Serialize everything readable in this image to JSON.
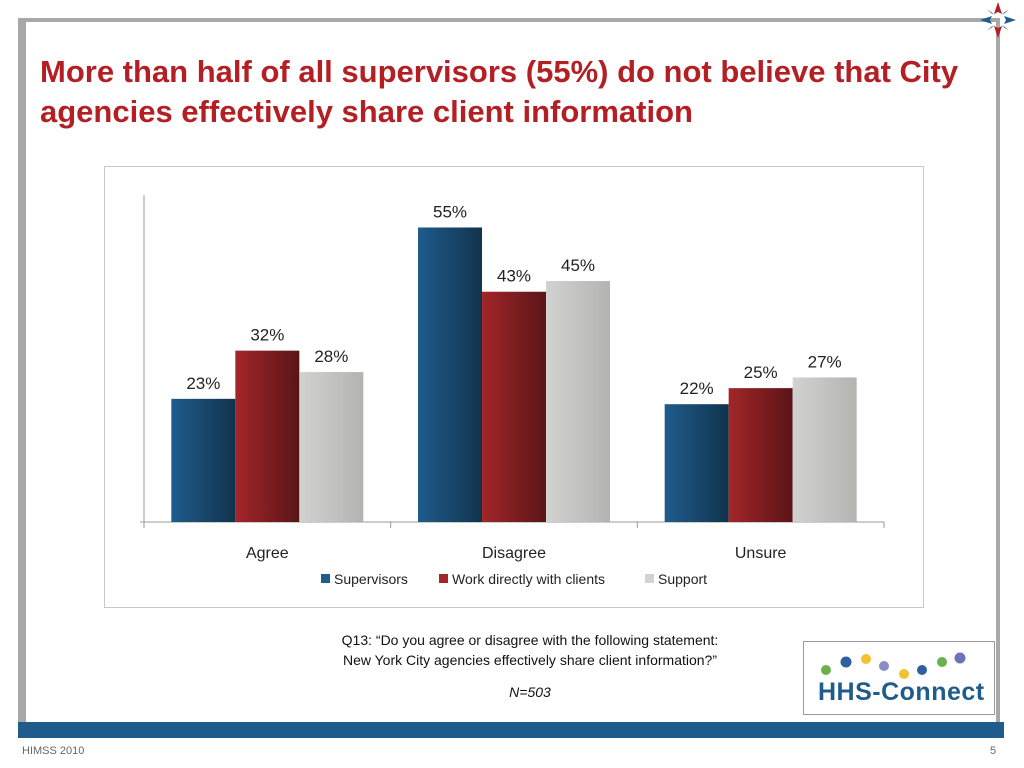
{
  "slide": {
    "title": "More than half of all supervisors (55%) do not believe that City agencies effectively share client information",
    "question_line1": "Q13: “Do you agree or disagree with the following statement:",
    "question_line2": "New York City agencies effectively share client information?”",
    "sample_size": "N=503",
    "footer_left": "HIMSS 2010",
    "page_number": "5",
    "logo_text": "HHS-Connect",
    "corner_logo_icon": "star-logo-icon"
  },
  "colors": {
    "title": "#b41f24",
    "supervisors": "#1f5c8c",
    "work_directly": "#a3262a",
    "support": "#d2d2d0",
    "frame_bar": "#1f5c8c"
  },
  "chart_data": {
    "type": "bar",
    "categories": [
      "Agree",
      "Disagree",
      "Unsure"
    ],
    "series": [
      {
        "name": "Supervisors",
        "values": [
          23,
          55,
          22
        ],
        "color": "#1f5c8c"
      },
      {
        "name": "Work directly with clients",
        "values": [
          32,
          43,
          25
        ],
        "color": "#a3262a"
      },
      {
        "name": "Support",
        "values": [
          28,
          45,
          27
        ],
        "color": "#d2d2d0"
      }
    ],
    "value_suffix": "%",
    "ylim": [
      0,
      62
    ],
    "grid": false,
    "legend_position": "bottom"
  }
}
